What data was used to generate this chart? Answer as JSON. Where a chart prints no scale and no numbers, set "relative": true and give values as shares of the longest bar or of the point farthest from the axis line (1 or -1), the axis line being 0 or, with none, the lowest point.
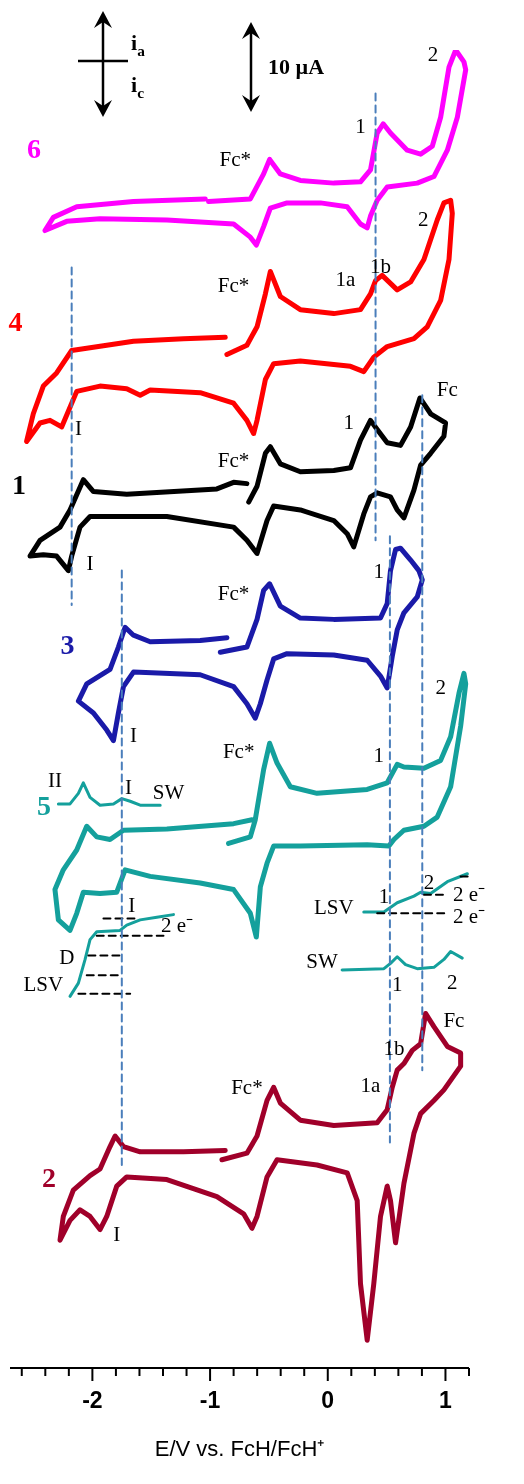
{
  "chart_data": {
    "type": "line",
    "relative": true,
    "xlabel": "E/V vs. FcH/FcH⁺",
    "xlim": [
      -2.7,
      1.2
    ],
    "xticks": [
      {
        "value": -2.6,
        "label": null
      },
      {
        "value": -2.4,
        "label": null
      },
      {
        "value": -2.2,
        "label": null
      },
      -2,
      {
        "value": -1.8,
        "label": null
      },
      {
        "value": -1.6,
        "label": null
      },
      {
        "value": -1.4,
        "label": null
      },
      {
        "value": -1.2,
        "label": null
      },
      -1,
      {
        "value": -0.8,
        "label": null
      },
      {
        "value": -0.6,
        "label": null
      },
      {
        "value": -0.4,
        "label": null
      },
      {
        "value": -0.2,
        "label": null
      },
      0,
      {
        "value": 0.2,
        "label": null
      },
      {
        "value": 0.4,
        "label": null
      },
      {
        "value": 0.6,
        "label": null
      },
      {
        "value": 0.8,
        "label": null
      },
      1,
      {
        "value": 1.2,
        "label": null
      }
    ],
    "series": [
      {
        "name": "6",
        "color": "#ff00ff",
        "x": [
          -1.013,
          -0.658,
          -0.545,
          -0.494,
          -0.403,
          -0.233,
          0.051,
          0.278,
          0.363,
          0.42,
          0.471,
          0.533,
          0.675,
          0.789,
          0.888,
          0.959,
          1.03,
          1.087,
          1.157,
          1.172,
          1.101,
          1.016,
          0.902,
          0.76,
          0.505,
          0.42,
          0.363,
          0.335,
          0.278,
          0.165,
          -0.062,
          -0.346,
          -0.488,
          -0.545,
          -0.607,
          -0.658,
          -0.8,
          -1.367,
          -1.935,
          -2.218,
          -2.403,
          -2.332,
          -2.133,
          -1.651,
          -1.041
        ],
        "values": [
          0.885,
          0.887,
          0.906,
          0.917,
          0.906,
          0.901,
          0.899,
          0.9,
          0.909,
          0.937,
          0.944,
          0.937,
          0.924,
          0.921,
          0.927,
          0.949,
          0.987,
          1.0,
          0.991,
          0.985,
          0.949,
          0.924,
          0.904,
          0.899,
          0.896,
          0.886,
          0.874,
          0.865,
          0.868,
          0.881,
          0.884,
          0.884,
          0.88,
          0.866,
          0.852,
          0.858,
          0.868,
          0.871,
          0.872,
          0.87,
          0.863,
          0.873,
          0.881,
          0.885,
          0.887
        ]
      },
      {
        "name": "4",
        "color": "#ff0000",
        "x": [
          -0.857,
          -0.687,
          -0.601,
          -0.53,
          -0.488,
          -0.403,
          -0.233,
          0.051,
          0.278,
          0.363,
          0.406,
          0.462,
          0.59,
          0.704,
          0.817,
          0.93,
          0.987,
          1.044,
          1.058,
          1.03,
          0.959,
          0.845,
          0.732,
          0.505,
          0.391,
          0.306,
          0.193,
          -0.233,
          -0.46,
          -0.53,
          -0.601,
          -0.63,
          -0.687,
          -0.8,
          -1.084,
          -1.509,
          -1.594,
          -1.708,
          -1.935,
          -2.133,
          -2.19,
          -2.261,
          -2.36,
          -2.445,
          -2.559,
          -2.502,
          -2.417,
          -2.304,
          -2.176,
          -1.651,
          -1.226,
          -0.871
        ],
        "values": [
          0.769,
          0.776,
          0.79,
          0.815,
          0.832,
          0.813,
          0.803,
          0.8,
          0.803,
          0.815,
          0.825,
          0.829,
          0.818,
          0.824,
          0.841,
          0.871,
          0.884,
          0.886,
          0.876,
          0.841,
          0.81,
          0.79,
          0.781,
          0.775,
          0.767,
          0.756,
          0.76,
          0.764,
          0.762,
          0.75,
          0.719,
          0.709,
          0.719,
          0.732,
          0.74,
          0.742,
          0.738,
          0.743,
          0.745,
          0.741,
          0.729,
          0.714,
          0.719,
          0.717,
          0.703,
          0.724,
          0.745,
          0.755,
          0.772,
          0.779,
          0.781,
          0.782
        ]
      },
      {
        "name": "1",
        "color": "#000000",
        "x": [
          -0.672,
          -0.601,
          -0.53,
          -0.488,
          -0.403,
          -0.233,
          0.051,
          0.193,
          0.278,
          0.363,
          0.42,
          0.505,
          0.618,
          0.704,
          0.783,
          0.874,
          1.001,
          0.987,
          0.874,
          0.789,
          0.732,
          0.647,
          0.59,
          0.533,
          0.42,
          0.363,
          0.306,
          0.221,
          0.165,
          0.051,
          -0.233,
          -0.46,
          -0.516,
          -0.601,
          -0.687,
          -0.8,
          -1.367,
          -2.02,
          -2.105,
          -2.176,
          -2.204,
          -2.304,
          -2.417,
          -2.53,
          -2.445,
          -2.275,
          -2.19,
          -2.077,
          -1.991,
          -1.708,
          -0.942,
          -0.8,
          -0.687
        ],
        "values": [
          0.657,
          0.669,
          0.694,
          0.699,
          0.686,
          0.68,
          0.681,
          0.683,
          0.704,
          0.719,
          0.712,
          0.702,
          0.7,
          0.714,
          0.736,
          0.724,
          0.717,
          0.707,
          0.694,
          0.685,
          0.666,
          0.645,
          0.651,
          0.661,
          0.664,
          0.661,
          0.648,
          0.623,
          0.633,
          0.643,
          0.651,
          0.654,
          0.643,
          0.618,
          0.628,
          0.638,
          0.646,
          0.646,
          0.638,
          0.616,
          0.605,
          0.616,
          0.617,
          0.616,
          0.628,
          0.638,
          0.651,
          0.674,
          0.665,
          0.663,
          0.667,
          0.672,
          0.671
        ]
      },
      {
        "name": "3",
        "color": "#1a1aa8",
        "x": [
          -0.913,
          -0.687,
          -0.601,
          -0.545,
          -0.494,
          -0.403,
          -0.233,
          0.051,
          0.448,
          0.505,
          0.533,
          0.576,
          0.618,
          0.704,
          0.774,
          0.803,
          0.76,
          0.647,
          0.59,
          0.548,
          0.505,
          0.448,
          0.335,
          0.051,
          -0.346,
          -0.46,
          -0.516,
          -0.573,
          -0.616,
          -0.687,
          -0.8,
          -1.084,
          -1.651,
          -1.736,
          -1.779,
          -1.821,
          -1.878,
          -1.991,
          -2.119,
          -2.048,
          -1.85,
          -1.779,
          -1.722,
          -1.651,
          -1.509,
          -1.084,
          -0.857
        ],
        "values": [
          0.543,
          0.547,
          0.568,
          0.59,
          0.595,
          0.578,
          0.569,
          0.568,
          0.569,
          0.58,
          0.605,
          0.621,
          0.622,
          0.613,
          0.605,
          0.598,
          0.585,
          0.573,
          0.56,
          0.54,
          0.516,
          0.525,
          0.537,
          0.541,
          0.542,
          0.538,
          0.522,
          0.504,
          0.493,
          0.504,
          0.517,
          0.526,
          0.528,
          0.517,
          0.497,
          0.476,
          0.484,
          0.497,
          0.506,
          0.519,
          0.53,
          0.547,
          0.562,
          0.556,
          0.551,
          0.552,
          0.554
        ]
      },
      {
        "name": "5",
        "color": "#14a09c",
        "x": [
          -0.843,
          -0.658,
          -0.616,
          -0.545,
          -0.494,
          -0.431,
          -0.318,
          -0.091,
          0.335,
          0.505,
          0.59,
          0.647,
          0.817,
          0.959,
          1.044,
          1.115,
          1.157,
          1.172,
          1.129,
          1.044,
          0.93,
          0.817,
          0.647,
          0.562,
          0.519,
          0.335,
          -0.233,
          -0.46,
          -0.516,
          -0.573,
          -0.607,
          -0.658,
          -0.8,
          -1.084,
          -1.509,
          -1.722,
          -1.793,
          -1.935,
          -2.077,
          -2.133,
          -2.19,
          -2.289,
          -2.318,
          -2.247,
          -2.133,
          -2.048,
          -1.963,
          -1.85,
          -1.736,
          -1.367,
          -0.8,
          -0.644
        ],
        "values": [
          0.398,
          0.403,
          0.416,
          0.454,
          0.474,
          0.459,
          0.441,
          0.436,
          0.439,
          0.444,
          0.458,
          0.456,
          0.455,
          0.461,
          0.479,
          0.512,
          0.527,
          0.519,
          0.487,
          0.441,
          0.418,
          0.411,
          0.408,
          0.401,
          0.396,
          0.397,
          0.396,
          0.396,
          0.383,
          0.365,
          0.327,
          0.345,
          0.363,
          0.368,
          0.373,
          0.378,
          0.361,
          0.36,
          0.361,
          0.345,
          0.332,
          0.34,
          0.363,
          0.378,
          0.393,
          0.411,
          0.403,
          0.401,
          0.408,
          0.409,
          0.413,
          0.416
        ]
      },
      {
        "name": "2",
        "color": "#a0002a",
        "x": [
          -0.899,
          -0.687,
          -0.601,
          -0.516,
          -0.46,
          -0.403,
          -0.233,
          0.051,
          0.42,
          0.505,
          0.548,
          0.59,
          0.647,
          0.718,
          0.789,
          0.831,
          0.902,
          1.016,
          1.129,
          1.129,
          0.987,
          0.902,
          0.789,
          0.732,
          0.647,
          0.576,
          0.533,
          0.505,
          0.448,
          0.391,
          0.335,
          0.278,
          0.25,
          0.165,
          -0.091,
          -0.431,
          -0.516,
          -0.601,
          -0.644,
          -0.715,
          -0.942,
          -1.367,
          -1.708,
          -1.793,
          -1.878,
          -1.935,
          -2.02,
          -2.105,
          -2.19,
          -2.275,
          -2.247,
          -2.162,
          -2.02,
          -1.935,
          -1.85,
          -1.807,
          -1.736,
          -1.594,
          -1.226,
          -0.871
        ],
        "values": [
          0.158,
          0.163,
          0.176,
          0.203,
          0.213,
          0.201,
          0.188,
          0.184,
          0.186,
          0.196,
          0.213,
          0.226,
          0.231,
          0.241,
          0.246,
          0.269,
          0.259,
          0.244,
          0.239,
          0.229,
          0.211,
          0.203,
          0.193,
          0.178,
          0.14,
          0.095,
          0.127,
          0.138,
          0.115,
          0.064,
          0.021,
          0.064,
          0.127,
          0.148,
          0.154,
          0.158,
          0.145,
          0.115,
          0.106,
          0.117,
          0.13,
          0.143,
          0.145,
          0.138,
          0.115,
          0.105,
          0.115,
          0.12,
          0.112,
          0.097,
          0.115,
          0.135,
          0.146,
          0.151,
          0.168,
          0.176,
          0.168,
          0.164,
          0.164,
          0.165
        ]
      },
      {
        "color": "#14a09c",
        "x": [
          -2.289,
          -2.19,
          -2.119,
          -2.077,
          -2.02,
          -1.935,
          -1.821,
          -1.75,
          -1.679,
          -1.594,
          -1.424
        ],
        "values": [
          0.428,
          0.428,
          0.436,
          0.444,
          0.433,
          0.427,
          0.428,
          0.432,
          0.43,
          0.427,
          0.427
        ]
      },
      {
        "color": "#14a09c",
        "x": [
          -2.19,
          -2.119,
          -2.062,
          -2.02,
          -1.963,
          -1.765,
          -1.708,
          -1.594,
          -1.452,
          -1.311
        ],
        "values": [
          0.282,
          0.292,
          0.31,
          0.325,
          0.331,
          0.332,
          0.336,
          0.34,
          0.342,
          0.344
        ]
      },
      {
        "color": "#14a09c",
        "x": [
          0.306,
          0.477,
          0.59,
          0.732,
          0.789,
          0.874,
          1.016,
          1.186
        ],
        "values": [
          0.346,
          0.346,
          0.353,
          0.358,
          0.361,
          0.36,
          0.369,
          0.375
        ]
      },
      {
        "color": "#14a09c",
        "x": [
          0.122,
          0.477,
          0.533,
          0.59,
          0.661,
          0.76,
          0.902,
          0.987,
          1.044,
          1.143
        ],
        "values": [
          0.302,
          0.303,
          0.307,
          0.312,
          0.306,
          0.303,
          0.304,
          0.31,
          0.316,
          0.311
        ]
      },
      {
        "color": "#000000",
        "line_style": "dashed",
        "x": [
          -1.906,
          -1.622
        ],
        "values": [
          0.341,
          0.341
        ]
      },
      {
        "color": "#000000",
        "line_style": "dashed",
        "x": [
          -1.963,
          -1.396
        ],
        "values": [
          0.328,
          0.328
        ]
      },
      {
        "color": "#000000",
        "line_style": "dashed",
        "x": [
          -2.034,
          -1.765
        ],
        "values": [
          0.313,
          0.313
        ]
      },
      {
        "color": "#000000",
        "line_style": "dashed",
        "x": [
          -2.048,
          -1.765
        ],
        "values": [
          0.298,
          0.298
        ]
      },
      {
        "color": "#000000",
        "line_style": "dashed",
        "x": [
          -2.119,
          -1.679
        ],
        "values": [
          0.284,
          0.284
        ]
      },
      {
        "color": "#000000",
        "line_style": "dashed",
        "x": [
          0.42,
          1.02
        ],
        "values": [
          0.345,
          0.345
        ]
      },
      {
        "color": "#000000",
        "line_style": "dashed",
        "x": [
          0.817,
          1.02
        ],
        "values": [
          0.359,
          0.359
        ]
      },
      {
        "color": "#000000",
        "line_style": "dashed",
        "x": [
          1.129,
          1.2
        ],
        "values": [
          0.373,
          0.373
        ]
      },
      {
        "color": "#4a7ebb",
        "line_style": "dashed",
        "x": [
          0.406,
          0.406
        ],
        "values": [
          0.967,
          0.628
        ]
      },
      {
        "color": "#4a7ebb",
        "line_style": "dashed",
        "x": [
          -2.176,
          -2.176
        ],
        "values": [
          0.835,
          0.579
        ]
      },
      {
        "color": "#4a7ebb",
        "line_style": "dashed",
        "x": [
          -1.75,
          -1.75
        ],
        "values": [
          0.605,
          0.154
        ]
      },
      {
        "color": "#4a7ebb",
        "line_style": "dashed",
        "x": [
          0.528,
          0.528
        ],
        "values": [
          0.631,
          0.171
        ]
      },
      {
        "color": "#4a7ebb",
        "line_style": "dashed",
        "x": [
          0.803,
          0.803
        ],
        "values": [
          0.738,
          0.226
        ]
      }
    ],
    "annotations": [
      "i$_{a}$",
      "i$_{c}$",
      "10 µA",
      "2",
      "1",
      "Fc*",
      "2",
      "1b",
      "1a",
      "Fc*",
      "I",
      "Fc",
      "1",
      "Fc*",
      "I",
      "1",
      "Fc*",
      "I",
      "2",
      "Fc*",
      "1",
      "II",
      "I",
      "SW",
      "I",
      "2 e⁻",
      "D",
      "LSV",
      "LSV",
      "1",
      "2",
      "2 e⁻",
      "2 e⁻",
      "SW",
      "1",
      "2",
      "Fc",
      "1b",
      "1a",
      "Fc*",
      "I"
    ]
  }
}
